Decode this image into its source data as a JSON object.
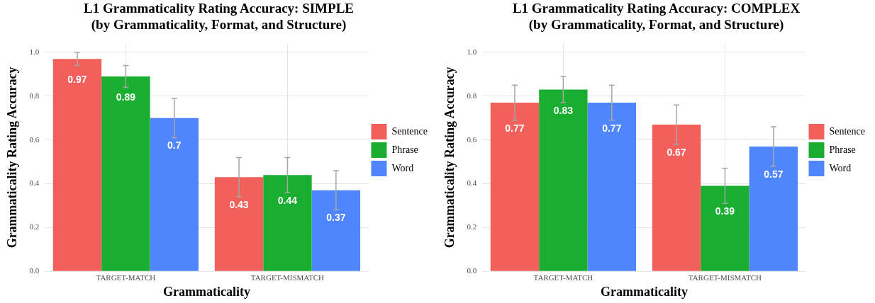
{
  "chart_data": [
    {
      "type": "bar",
      "title": "L1 Grammaticality Rating Accuracy: SIMPLE\n(by Grammaticality, Format, and Structure)",
      "xlabel": "Grammaticality",
      "ylabel": "Grammaticality Rating Accuracy",
      "categories": [
        "TARGET-MATCH",
        "TARGET-MISMATCH"
      ],
      "series": [
        {
          "name": "Sentence",
          "color": "#f2605b",
          "values": [
            0.97,
            0.43
          ],
          "errors": [
            [
              0.94,
              1.0
            ],
            [
              0.34,
              0.52
            ]
          ]
        },
        {
          "name": "Phrase",
          "color": "#1aae30",
          "values": [
            0.89,
            0.44
          ],
          "errors": [
            [
              0.84,
              0.94
            ],
            [
              0.36,
              0.52
            ]
          ]
        },
        {
          "name": "Word",
          "color": "#5086fd",
          "values": [
            0.7,
            0.37
          ],
          "errors": [
            [
              0.61,
              0.79
            ],
            [
              0.28,
              0.46
            ]
          ]
        }
      ],
      "ylim": [
        0,
        1.04
      ],
      "yticks": [
        {
          "value": 0,
          "label": "0.0"
        },
        {
          "value": 0.2,
          "label": "0.2"
        },
        {
          "value": 0.4,
          "label": "0.4"
        },
        {
          "value": 0.6,
          "label": "0.6"
        },
        {
          "value": 0.8,
          "label": "0.8"
        },
        {
          "value": 1,
          "label": "1.0"
        }
      ],
      "grid": true,
      "legend": "right",
      "data_labels": true
    },
    {
      "type": "bar",
      "title": "L1 Grammaticality Rating Accuracy: COMPLEX\n(by Grammaticality, Format, and Structure)",
      "xlabel": "Grammaticality",
      "ylabel": "Grammaticality Rating Accuracy",
      "categories": [
        "TARGET-MATCH",
        "TARGET-MISMATCH"
      ],
      "series": [
        {
          "name": "Sentence",
          "color": "#f2605b",
          "values": [
            0.77,
            0.67
          ],
          "errors": [
            [
              0.69,
              0.85
            ],
            [
              0.58,
              0.76
            ]
          ]
        },
        {
          "name": "Phrase",
          "color": "#1aae30",
          "values": [
            0.83,
            0.39
          ],
          "errors": [
            [
              0.77,
              0.89
            ],
            [
              0.31,
              0.47
            ]
          ]
        },
        {
          "name": "Word",
          "color": "#5086fd",
          "values": [
            0.77,
            0.57
          ],
          "errors": [
            [
              0.69,
              0.85
            ],
            [
              0.48,
              0.66
            ]
          ]
        }
      ],
      "ylim": [
        0,
        1.04
      ],
      "yticks": [
        {
          "value": 0,
          "label": "0.0"
        },
        {
          "value": 0.2,
          "label": "0.2"
        },
        {
          "value": 0.4,
          "label": "0.4"
        },
        {
          "value": 0.6,
          "label": "0.6"
        },
        {
          "value": 0.8,
          "label": "0.8"
        },
        {
          "value": 1,
          "label": "1.0"
        }
      ],
      "grid": true,
      "legend": "right",
      "data_labels": true
    }
  ]
}
